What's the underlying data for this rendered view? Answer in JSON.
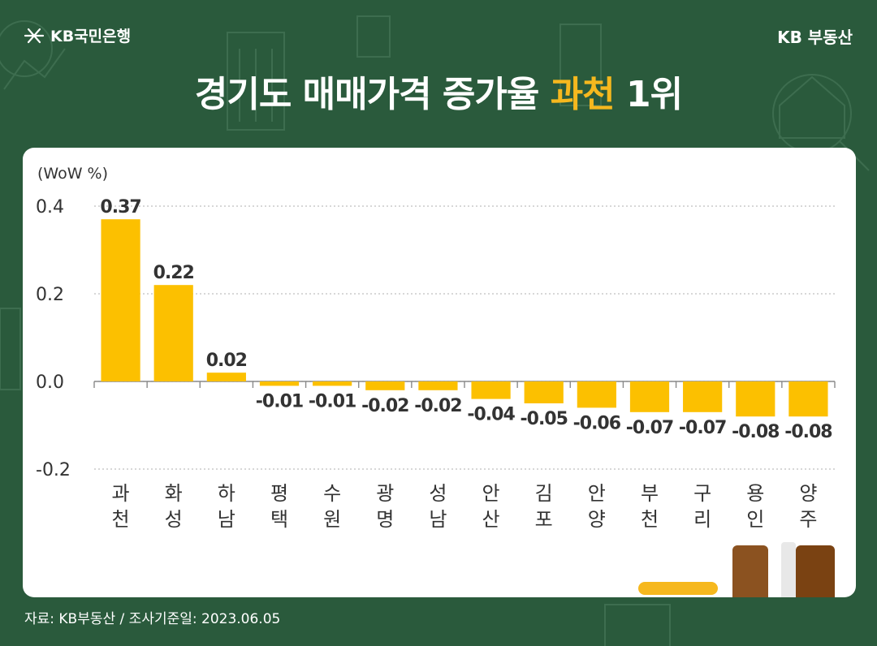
{
  "header": {
    "logo_text": "KB국민은행",
    "brand_right": "KB 부동산",
    "title_pre": "경기도 매매가격 증가율 ",
    "title_highlight": "과천",
    "title_post": " 1위"
  },
  "footer": {
    "source": "자료: KB부동산 / 조사기준일: 2023.06.05"
  },
  "colors": {
    "background": "#2a5a3c",
    "bar": "#fcc000",
    "highlight": "#f6b81e"
  },
  "chart_data": {
    "type": "bar",
    "unit_label": "(WoW %)",
    "categories": [
      [
        "과",
        "천"
      ],
      [
        "화",
        "성"
      ],
      [
        "하",
        "남"
      ],
      [
        "평",
        "택"
      ],
      [
        "수",
        "원"
      ],
      [
        "광",
        "명"
      ],
      [
        "성",
        "남"
      ],
      [
        "안",
        "산"
      ],
      [
        "김",
        "포"
      ],
      [
        "안",
        "양"
      ],
      [
        "부",
        "천"
      ],
      [
        "구",
        "리"
      ],
      [
        "용",
        "인"
      ],
      [
        "양",
        "주"
      ]
    ],
    "values": [
      0.37,
      0.22,
      0.02,
      -0.01,
      -0.01,
      -0.02,
      -0.02,
      -0.04,
      -0.05,
      -0.06,
      -0.07,
      -0.07,
      -0.08,
      -0.08
    ],
    "value_labels": [
      "0.37",
      "0.22",
      "0.02",
      "-0.01",
      "-0.01",
      "-0.02",
      "-0.02",
      "-0.04",
      "-0.05",
      "-0.06",
      "-0.07",
      "-0.07",
      "-0.08",
      "-0.08"
    ],
    "ylim": [
      -0.2,
      0.4
    ],
    "yticks": [
      0.4,
      0.2,
      0.0,
      -0.2
    ],
    "ytick_labels": [
      "0.4",
      "0.2",
      "0.0",
      "-0.2"
    ],
    "grid": true,
    "legend": false
  }
}
